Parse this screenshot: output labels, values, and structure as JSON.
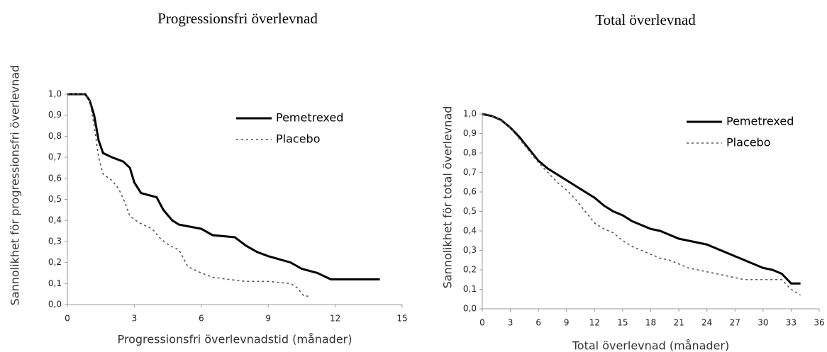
{
  "chart_data": [
    {
      "type": "line",
      "title": "Progressionsfri överlevnad",
      "xlabel": "Progressionsfri överlevnadstid (månader)",
      "ylabel": "Sannolikhet för progressionsfri överlevnad",
      "xlim": [
        0,
        15
      ],
      "xticks": [
        0,
        3,
        6,
        9,
        12,
        15
      ],
      "ylim": [
        0,
        1
      ],
      "yticks": [
        {
          "value": 0,
          "label": "0,0"
        },
        {
          "value": 0.1,
          "label": "0,1"
        },
        {
          "value": 0.2,
          "label": "0,2"
        },
        {
          "value": 0.3,
          "label": "0,3"
        },
        {
          "value": 0.4,
          "label": "0,4"
        },
        {
          "value": 0.5,
          "label": "0,5"
        },
        {
          "value": 0.6,
          "label": "0,6"
        },
        {
          "value": 0.7,
          "label": "0,7"
        },
        {
          "value": 0.8,
          "label": "0,8"
        },
        {
          "value": 0.9,
          "label": "0,9"
        },
        {
          "value": 1,
          "label": "1,0"
        }
      ],
      "legend": "upper right",
      "grid": false,
      "series": [
        {
          "name": "Pemetrexed",
          "color": "#000000",
          "linestyle": "solid",
          "x": [
            0,
            0.8,
            1.0,
            1.2,
            1.4,
            1.6,
            2.0,
            2.5,
            2.8,
            3.0,
            3.3,
            4.0,
            4.3,
            4.7,
            5.0,
            6.0,
            6.5,
            7.5,
            8.0,
            8.5,
            9.0,
            10.0,
            10.5,
            11.2,
            11.8,
            14.0
          ],
          "values": [
            1.0,
            1.0,
            0.97,
            0.9,
            0.78,
            0.72,
            0.7,
            0.68,
            0.65,
            0.58,
            0.53,
            0.51,
            0.45,
            0.4,
            0.38,
            0.36,
            0.33,
            0.32,
            0.28,
            0.25,
            0.23,
            0.2,
            0.17,
            0.15,
            0.12,
            0.12
          ]
        },
        {
          "name": "Placebo",
          "color": "#555555",
          "linestyle": "dotted",
          "x": [
            0,
            0.8,
            1.0,
            1.2,
            1.4,
            1.6,
            2.0,
            2.3,
            2.6,
            2.8,
            3.2,
            3.8,
            4.2,
            4.6,
            5.0,
            5.4,
            6.0,
            6.5,
            7.2,
            8.0,
            9.0,
            10.0,
            10.3,
            10.6,
            10.8
          ],
          "values": [
            1.0,
            1.0,
            0.97,
            0.85,
            0.7,
            0.62,
            0.59,
            0.55,
            0.48,
            0.42,
            0.39,
            0.36,
            0.31,
            0.28,
            0.26,
            0.18,
            0.15,
            0.13,
            0.12,
            0.11,
            0.11,
            0.1,
            0.08,
            0.04,
            0.04
          ]
        }
      ]
    },
    {
      "type": "line",
      "title": "Total överlevnad",
      "xlabel": "Total överlevnad (månader)",
      "ylabel": "Sannolikhet för total överlevnad",
      "xlim": [
        0,
        36
      ],
      "xticks": [
        0,
        3,
        6,
        9,
        12,
        15,
        18,
        21,
        24,
        27,
        30,
        33,
        36
      ],
      "ylim": [
        0,
        1
      ],
      "yticks": [
        {
          "value": 0,
          "label": "0,0"
        },
        {
          "value": 0.1,
          "label": "0,1"
        },
        {
          "value": 0.2,
          "label": "0,2"
        },
        {
          "value": 0.3,
          "label": "0,3"
        },
        {
          "value": 0.4,
          "label": "0,4"
        },
        {
          "value": 0.5,
          "label": "0,5"
        },
        {
          "value": 0.6,
          "label": "0,6"
        },
        {
          "value": 0.7,
          "label": "0,7"
        },
        {
          "value": 0.8,
          "label": "0,8"
        },
        {
          "value": 0.9,
          "label": "0,9"
        },
        {
          "value": 1,
          "label": "1,0"
        }
      ],
      "legend": "upper right",
      "grid": false,
      "series": [
        {
          "name": "Pemetrexed",
          "color": "#000000",
          "linestyle": "solid",
          "x": [
            0,
            1,
            2,
            3,
            4,
            5,
            6,
            7,
            8,
            9,
            10,
            11,
            12,
            13,
            14,
            15,
            16,
            17,
            18,
            19,
            20,
            21,
            22,
            23,
            24,
            25,
            26,
            27,
            28,
            29,
            30,
            31,
            32,
            33,
            34
          ],
          "values": [
            1.0,
            0.99,
            0.97,
            0.93,
            0.88,
            0.82,
            0.76,
            0.72,
            0.69,
            0.66,
            0.63,
            0.6,
            0.57,
            0.53,
            0.5,
            0.48,
            0.45,
            0.43,
            0.41,
            0.4,
            0.38,
            0.36,
            0.35,
            0.34,
            0.33,
            0.31,
            0.29,
            0.27,
            0.25,
            0.23,
            0.21,
            0.2,
            0.18,
            0.13,
            0.13
          ]
        },
        {
          "name": "Placebo",
          "color": "#555555",
          "linestyle": "dotted",
          "x": [
            0,
            1,
            2,
            3,
            4,
            5,
            6,
            7,
            8,
            9,
            10,
            11,
            12,
            13,
            14,
            15,
            16,
            17,
            18,
            19,
            20,
            21,
            22,
            23,
            24,
            25,
            26,
            27,
            28,
            29,
            30,
            31,
            32,
            33,
            34
          ],
          "values": [
            1.0,
            0.99,
            0.97,
            0.93,
            0.87,
            0.81,
            0.75,
            0.7,
            0.65,
            0.61,
            0.56,
            0.5,
            0.44,
            0.41,
            0.39,
            0.35,
            0.32,
            0.3,
            0.28,
            0.26,
            0.25,
            0.23,
            0.21,
            0.2,
            0.19,
            0.18,
            0.17,
            0.16,
            0.15,
            0.15,
            0.15,
            0.15,
            0.15,
            0.1,
            0.07
          ]
        }
      ]
    }
  ]
}
